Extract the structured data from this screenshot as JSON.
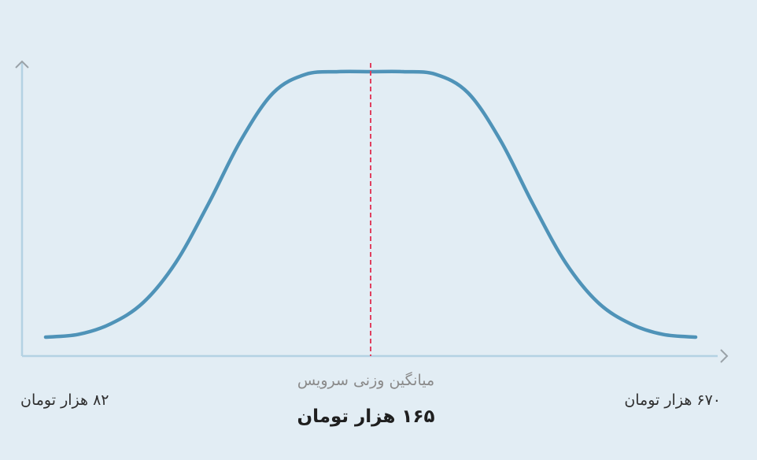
{
  "chart_data": {
    "type": "line",
    "title": "",
    "xlabel": "",
    "ylabel": "",
    "series": [
      {
        "x": [
          0.0,
          0.05,
          0.1,
          0.15,
          0.2,
          0.25,
          0.3,
          0.35,
          0.4,
          0.45,
          0.5,
          0.55,
          0.6,
          0.65,
          0.7,
          0.75,
          0.8,
          0.85,
          0.9,
          0.95,
          1.0
        ],
        "y": [
          0.0,
          0.01,
          0.05,
          0.13,
          0.28,
          0.5,
          0.74,
          0.92,
          0.99,
          1.0,
          1.0,
          1.0,
          0.99,
          0.92,
          0.74,
          0.5,
          0.28,
          0.13,
          0.05,
          0.01,
          0.0
        ]
      }
    ],
    "markers": [
      {
        "label": "میانگین وزنی سرویس",
        "value_label": "۱۶۵ هزار تومان",
        "x": 0.5
      }
    ],
    "x_start_label": "۸۲ هزار تومان",
    "x_end_label": "۶۷۰ هزار تومان",
    "grid": false,
    "colors": {
      "curve": "#4f93b8",
      "mean_line": "#e0405f",
      "axis": "#b4d2e3",
      "arrow": "#9aa2a8"
    }
  }
}
